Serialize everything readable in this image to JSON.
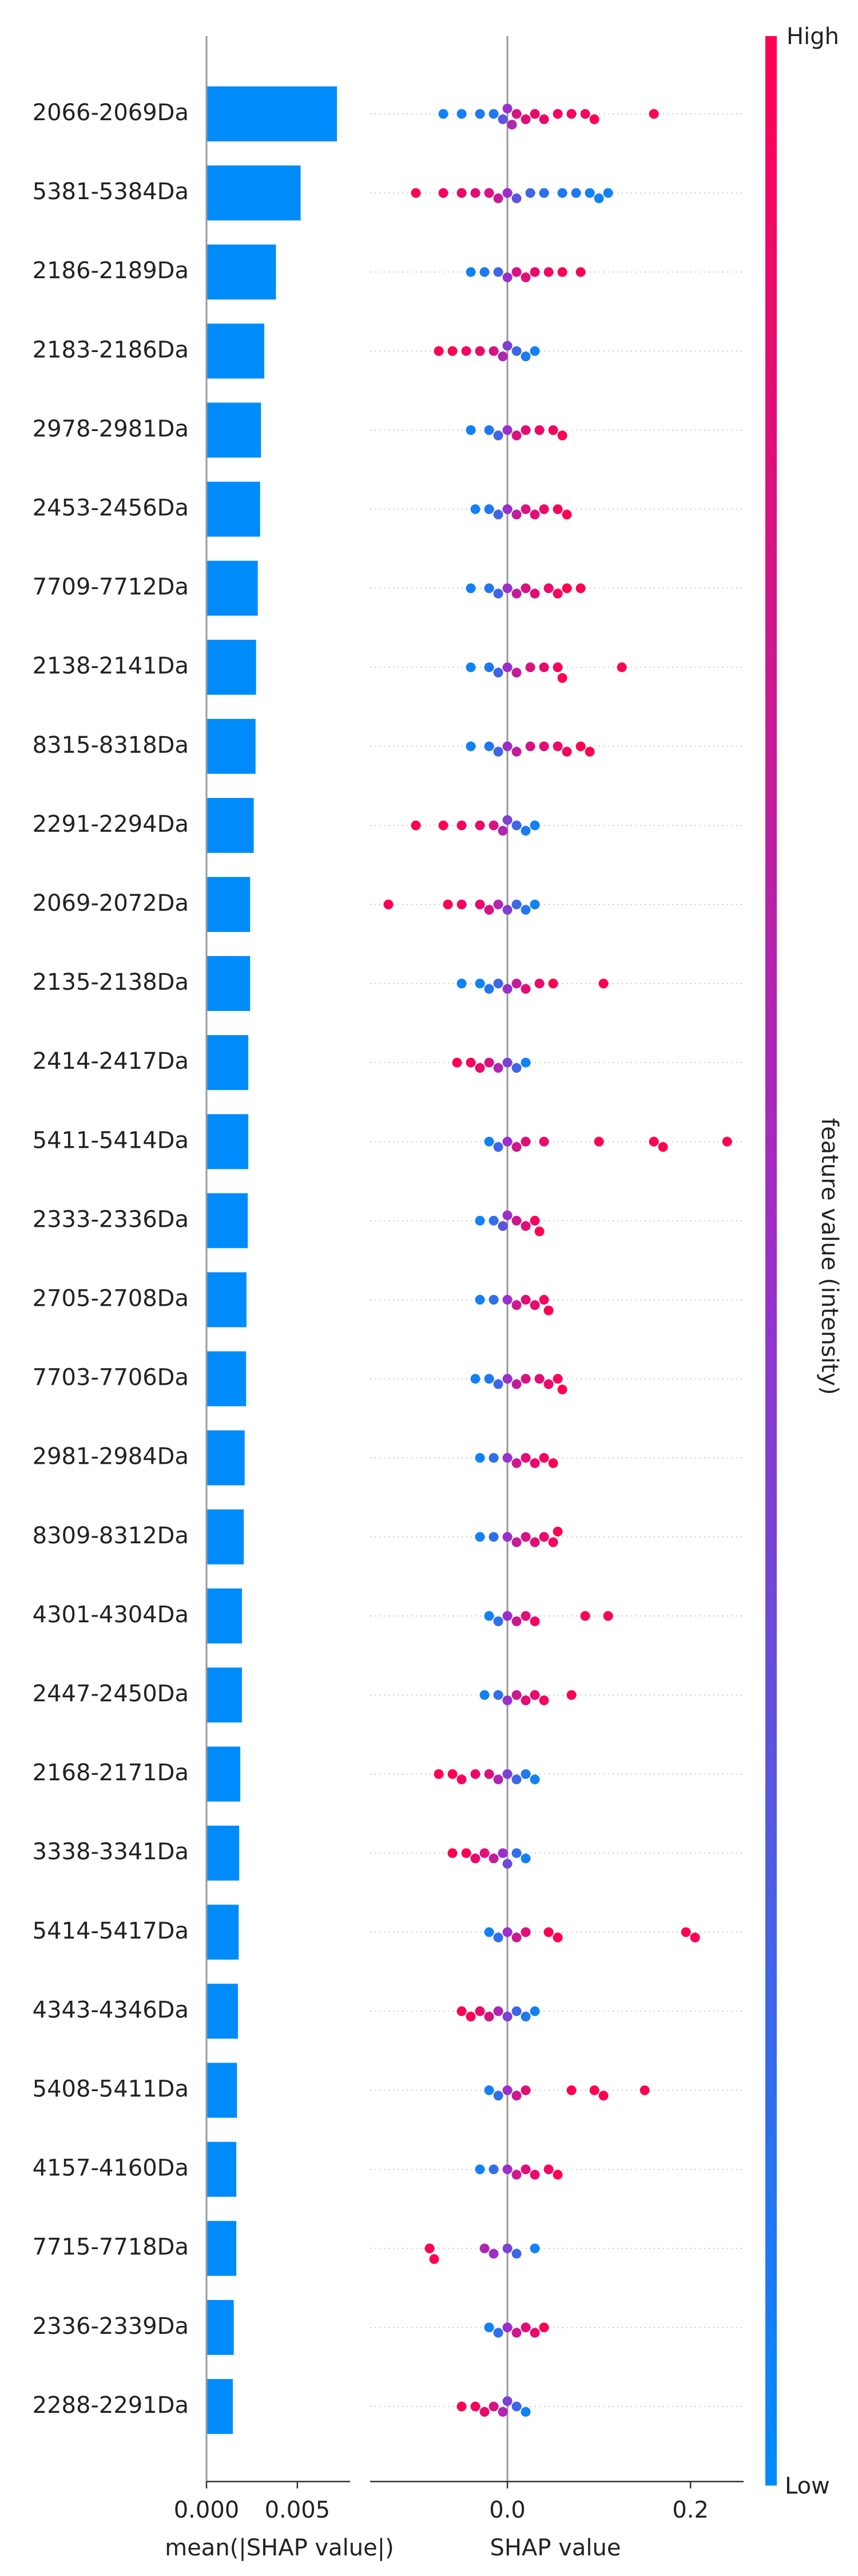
{
  "chart_data": [
    {
      "type": "barh",
      "categories": [
        "2066-2069Da",
        "5381-5384Da",
        "2186-2189Da",
        "2183-2186Da",
        "2978-2981Da",
        "2453-2456Da",
        "7709-7712Da",
        "2138-2141Da",
        "8315-8318Da",
        "2291-2294Da",
        "2069-2072Da",
        "2135-2138Da",
        "2414-2417Da",
        "5411-5414Da",
        "2333-2336Da",
        "2705-2708Da",
        "7703-7706Da",
        "2981-2984Da",
        "8309-8312Da",
        "4301-4304Da",
        "2447-2450Da",
        "2168-2171Da",
        "3338-3341Da",
        "5414-5417Da",
        "4343-4346Da",
        "5408-5411Da",
        "4157-4160Da",
        "7715-7718Da",
        "2336-2339Da",
        "2288-2291Da"
      ],
      "values": [
        0.00718,
        0.00518,
        0.00382,
        0.00318,
        0.003,
        0.00295,
        0.00282,
        0.00273,
        0.0027,
        0.0026,
        0.0024,
        0.0024,
        0.0023,
        0.0023,
        0.00227,
        0.0022,
        0.00218,
        0.0021,
        0.00205,
        0.00195,
        0.00195,
        0.00186,
        0.0018,
        0.00177,
        0.00173,
        0.00168,
        0.00164,
        0.00164,
        0.0015,
        0.00145
      ],
      "color": "#008bfb",
      "xlabel": "mean(|SHAP value|)",
      "xlim": [
        0,
        0.0079
      ],
      "xticks": [
        {
          "value": 0,
          "label": "0.000"
        },
        {
          "value": 0.005,
          "label": "0.005"
        }
      ]
    },
    {
      "type": "beeswarm",
      "xlabel": "SHAP value",
      "xlim": [
        -0.15,
        0.258
      ],
      "xticks": [
        {
          "value": 0,
          "label": "0.0"
        },
        {
          "value": 0.2,
          "label": "0.2"
        }
      ],
      "colormap": [
        "#008bfb",
        "#9b2fc9",
        "#ff0052"
      ],
      "colorbar": {
        "label": "feature value (intensity)",
        "high": "High",
        "low": "Low"
      },
      "rows": [
        {
          "shap": [
            -0.07,
            -0.05,
            -0.03,
            -0.015,
            -0.005,
            0,
            0.005,
            0.01,
            0.02,
            0.03,
            0.04,
            0.055,
            0.07,
            0.085,
            0.095,
            0.16
          ],
          "intensity": [
            0.05,
            0.05,
            0.1,
            0.1,
            0.3,
            0.5,
            0.6,
            0.8,
            0.85,
            0.9,
            0.9,
            0.95,
            0.95,
            0.95,
            1,
            1
          ]
        },
        {
          "shap": [
            -0.1,
            -0.07,
            -0.05,
            -0.035,
            -0.02,
            -0.01,
            0,
            0.01,
            0.025,
            0.04,
            0.06,
            0.075,
            0.09,
            0.1,
            0.11
          ],
          "intensity": [
            1,
            0.95,
            0.9,
            0.85,
            0.8,
            0.7,
            0.5,
            0.3,
            0.2,
            0.15,
            0.1,
            0.1,
            0.05,
            0.05,
            0.05
          ]
        },
        {
          "shap": [
            -0.04,
            -0.025,
            -0.01,
            0,
            0.01,
            0.02,
            0.03,
            0.045,
            0.06,
            0.08
          ],
          "intensity": [
            0.05,
            0.1,
            0.2,
            0.5,
            0.8,
            0.85,
            0.9,
            0.95,
            1,
            1
          ]
        },
        {
          "shap": [
            -0.075,
            -0.06,
            -0.045,
            -0.03,
            -0.015,
            -0.005,
            0,
            0.01,
            0.02,
            0.03
          ],
          "intensity": [
            1,
            1,
            0.95,
            0.9,
            0.8,
            0.6,
            0.4,
            0.2,
            0.1,
            0.05
          ]
        },
        {
          "shap": [
            -0.04,
            -0.02,
            -0.01,
            0,
            0.01,
            0.02,
            0.035,
            0.05,
            0.06
          ],
          "intensity": [
            0.05,
            0.1,
            0.2,
            0.5,
            0.8,
            0.85,
            0.9,
            0.95,
            1
          ]
        },
        {
          "shap": [
            -0.035,
            -0.02,
            -0.01,
            0,
            0.01,
            0.02,
            0.03,
            0.04,
            0.055,
            0.065
          ],
          "intensity": [
            0.05,
            0.1,
            0.2,
            0.5,
            0.7,
            0.8,
            0.85,
            0.9,
            0.95,
            1
          ]
        },
        {
          "shap": [
            -0.04,
            -0.02,
            -0.01,
            0,
            0.01,
            0.02,
            0.03,
            0.045,
            0.055,
            0.065,
            0.08
          ],
          "intensity": [
            0.05,
            0.1,
            0.2,
            0.5,
            0.7,
            0.8,
            0.85,
            0.9,
            0.95,
            1,
            1
          ]
        },
        {
          "shap": [
            -0.04,
            -0.02,
            -0.01,
            0,
            0.01,
            0.025,
            0.04,
            0.055,
            0.06,
            0.125
          ],
          "intensity": [
            0.05,
            0.1,
            0.2,
            0.5,
            0.7,
            0.8,
            0.9,
            0.95,
            1,
            1
          ]
        },
        {
          "shap": [
            -0.04,
            -0.02,
            -0.01,
            0,
            0.01,
            0.025,
            0.04,
            0.055,
            0.065,
            0.08,
            0.09
          ],
          "intensity": [
            0.05,
            0.1,
            0.2,
            0.5,
            0.7,
            0.8,
            0.85,
            0.9,
            0.95,
            1,
            1
          ]
        },
        {
          "shap": [
            -0.1,
            -0.07,
            -0.05,
            -0.03,
            -0.015,
            -0.005,
            0,
            0.01,
            0.02,
            0.03
          ],
          "intensity": [
            1,
            1,
            0.95,
            0.9,
            0.8,
            0.6,
            0.4,
            0.2,
            0.1,
            0.05
          ]
        },
        {
          "shap": [
            -0.13,
            -0.065,
            -0.05,
            -0.03,
            -0.02,
            -0.01,
            0,
            0.01,
            0.02,
            0.03
          ],
          "intensity": [
            1,
            1,
            0.95,
            0.9,
            0.8,
            0.6,
            0.4,
            0.2,
            0.1,
            0.05
          ]
        },
        {
          "shap": [
            -0.05,
            -0.03,
            -0.02,
            -0.01,
            0,
            0.01,
            0.02,
            0.035,
            0.05,
            0.105
          ],
          "intensity": [
            0.05,
            0.05,
            0.1,
            0.2,
            0.5,
            0.7,
            0.85,
            0.9,
            1,
            1
          ]
        },
        {
          "shap": [
            -0.055,
            -0.04,
            -0.03,
            -0.02,
            -0.01,
            0,
            0.01,
            0.02
          ],
          "intensity": [
            1,
            0.95,
            0.9,
            0.8,
            0.6,
            0.4,
            0.2,
            0.05
          ]
        },
        {
          "shap": [
            -0.02,
            -0.01,
            0,
            0.01,
            0.02,
            0.04,
            0.1,
            0.16,
            0.17,
            0.24
          ],
          "intensity": [
            0.05,
            0.2,
            0.5,
            0.75,
            0.85,
            0.9,
            1,
            1,
            1,
            1
          ]
        },
        {
          "shap": [
            -0.03,
            -0.015,
            -0.005,
            0,
            0.01,
            0.02,
            0.03,
            0.035
          ],
          "intensity": [
            0.05,
            0.15,
            0.3,
            0.5,
            0.75,
            0.85,
            0.95,
            1
          ]
        },
        {
          "shap": [
            -0.03,
            -0.015,
            0,
            0.01,
            0.02,
            0.03,
            0.04,
            0.045
          ],
          "intensity": [
            0.05,
            0.15,
            0.5,
            0.75,
            0.85,
            0.9,
            0.95,
            1
          ]
        },
        {
          "shap": [
            -0.035,
            -0.02,
            -0.01,
            0,
            0.01,
            0.02,
            0.035,
            0.045,
            0.055,
            0.06
          ],
          "intensity": [
            0.05,
            0.1,
            0.2,
            0.5,
            0.7,
            0.8,
            0.85,
            0.9,
            0.95,
            1
          ]
        },
        {
          "shap": [
            -0.03,
            -0.015,
            0,
            0.01,
            0.02,
            0.03,
            0.04,
            0.05
          ],
          "intensity": [
            0.05,
            0.15,
            0.5,
            0.75,
            0.85,
            0.9,
            0.95,
            1
          ]
        },
        {
          "shap": [
            -0.03,
            -0.015,
            0,
            0.01,
            0.02,
            0.03,
            0.04,
            0.05,
            0.055
          ],
          "intensity": [
            0.05,
            0.15,
            0.5,
            0.7,
            0.8,
            0.85,
            0.9,
            0.95,
            1
          ]
        },
        {
          "shap": [
            -0.02,
            -0.01,
            0,
            0.01,
            0.02,
            0.03,
            0.085,
            0.11
          ],
          "intensity": [
            0.05,
            0.15,
            0.5,
            0.75,
            0.85,
            0.95,
            1,
            1
          ]
        },
        {
          "shap": [
            -0.025,
            -0.01,
            0,
            0.01,
            0.02,
            0.03,
            0.04,
            0.07
          ],
          "intensity": [
            0.05,
            0.15,
            0.5,
            0.75,
            0.85,
            0.9,
            0.95,
            1
          ]
        },
        {
          "shap": [
            -0.075,
            -0.06,
            -0.05,
            -0.035,
            -0.02,
            -0.01,
            0,
            0.01,
            0.02,
            0.03
          ],
          "intensity": [
            1,
            1,
            0.95,
            0.9,
            0.8,
            0.6,
            0.4,
            0.2,
            0.1,
            0.05
          ]
        },
        {
          "shap": [
            -0.06,
            -0.045,
            -0.035,
            -0.025,
            -0.015,
            -0.005,
            0,
            0.01,
            0.02
          ],
          "intensity": [
            1,
            1,
            0.9,
            0.85,
            0.7,
            0.5,
            0.35,
            0.15,
            0.05
          ]
        },
        {
          "shap": [
            -0.02,
            -0.01,
            0,
            0.01,
            0.02,
            0.045,
            0.055,
            0.195,
            0.205
          ],
          "intensity": [
            0.05,
            0.15,
            0.5,
            0.75,
            0.85,
            1,
            1,
            1,
            1
          ]
        },
        {
          "shap": [
            -0.05,
            -0.04,
            -0.03,
            -0.02,
            -0.01,
            0,
            0.01,
            0.02,
            0.03
          ],
          "intensity": [
            1,
            1,
            0.9,
            0.8,
            0.6,
            0.4,
            0.2,
            0.1,
            0.05
          ]
        },
        {
          "shap": [
            -0.02,
            -0.01,
            0,
            0.01,
            0.02,
            0.07,
            0.095,
            0.105,
            0.15
          ],
          "intensity": [
            0.05,
            0.15,
            0.5,
            0.75,
            0.85,
            1,
            1,
            1,
            1
          ]
        },
        {
          "shap": [
            -0.03,
            -0.015,
            0,
            0.01,
            0.02,
            0.03,
            0.045,
            0.055
          ],
          "intensity": [
            0.05,
            0.15,
            0.5,
            0.75,
            0.85,
            0.9,
            0.95,
            1
          ]
        },
        {
          "shap": [
            -0.085,
            -0.08,
            -0.025,
            -0.015,
            0,
            0.01,
            0.03
          ],
          "intensity": [
            1,
            1,
            0.6,
            0.5,
            0.4,
            0.2,
            0.05
          ]
        },
        {
          "shap": [
            -0.02,
            -0.01,
            0,
            0.01,
            0.02,
            0.03,
            0.04
          ],
          "intensity": [
            0.05,
            0.15,
            0.5,
            0.75,
            0.85,
            0.9,
            1
          ]
        },
        {
          "shap": [
            -0.05,
            -0.035,
            -0.025,
            -0.015,
            -0.005,
            0,
            0.01,
            0.02
          ],
          "intensity": [
            1,
            0.95,
            0.9,
            0.8,
            0.6,
            0.4,
            0.2,
            0.05
          ]
        }
      ]
    }
  ]
}
